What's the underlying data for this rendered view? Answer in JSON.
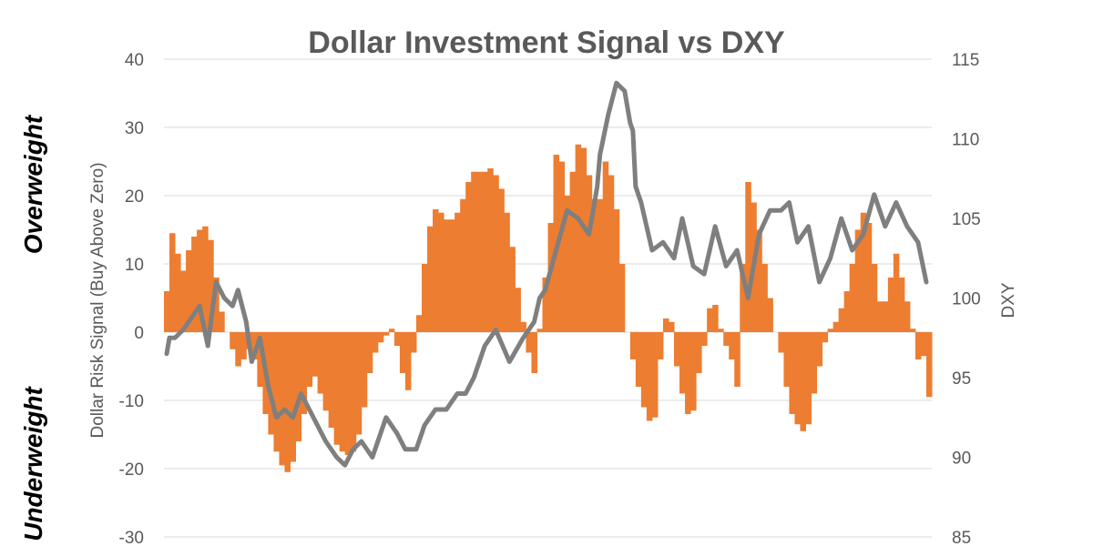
{
  "chart_data": {
    "type": "bar+line",
    "title": "Dollar Investment Signal vs DXY",
    "ylabel_left": "Dollar Risk Signal  (Buy Above Zero)",
    "ylabel_right": "DXY",
    "side_label_top": "Overweight",
    "side_label_bottom": "Underweight",
    "ylim_left": [
      -30,
      40
    ],
    "ylim_right": [
      85,
      115
    ],
    "yticks_left": [
      "40",
      "30",
      "20",
      "10",
      "0",
      "-10",
      "-20",
      "-30"
    ],
    "yticks_right": [
      "115",
      "110",
      "105",
      "100",
      "95",
      "90",
      "85"
    ],
    "grid": true,
    "colors": {
      "bar": "#ED7D31",
      "line": "#7F7F7F",
      "text": "#595959",
      "grid": "#D9D9D9"
    },
    "series": [
      {
        "name": "Dollar Risk Signal",
        "axis": "left",
        "style": "bar",
        "values": [
          6,
          14.5,
          11.5,
          9,
          12,
          14,
          15,
          15.5,
          13.5,
          8,
          3,
          0,
          -2.5,
          -5,
          -4,
          -2.5,
          -4,
          -8,
          -12,
          -15,
          -17.5,
          -19.5,
          -20.5,
          -19,
          -16,
          -12,
          -8,
          -6.5,
          -9,
          -11.5,
          -14,
          -16.5,
          -17.5,
          -18,
          -17.5,
          -15,
          -11,
          -6,
          -3,
          -1.5,
          -0.5,
          0.5,
          -2,
          -6,
          -8.5,
          -3,
          2.5,
          10,
          15.5,
          18,
          17.5,
          16.5,
          16.5,
          17.5,
          19.5,
          22,
          23.5,
          23.5,
          23.5,
          24,
          23,
          21,
          17.5,
          12.5,
          6.5,
          1.5,
          -3,
          -6,
          0.5,
          8,
          16,
          26,
          25,
          20,
          23.5,
          27.5,
          27,
          23,
          19.5,
          19.5,
          25,
          23,
          18,
          10,
          0,
          -4,
          -8,
          -11,
          -13,
          -12.5,
          -4,
          2,
          1.5,
          -5,
          -9,
          -12,
          -11.5,
          -6,
          -2,
          3.5,
          4,
          0.5,
          -2,
          -4,
          -8,
          10,
          22,
          19,
          15,
          10,
          5,
          0,
          -3,
          -8,
          -12,
          -13.5,
          -14.5,
          -13.5,
          -9,
          -5,
          -1.5,
          0.5,
          1.5,
          3.5,
          6,
          10,
          15,
          17.5,
          16,
          10,
          4.5,
          4.5,
          8,
          11.5,
          8,
          4.5,
          0.5,
          -4,
          -3.5,
          -9.5
        ]
      },
      {
        "name": "DXY",
        "axis": "right",
        "style": "line",
        "x": [
          0,
          0.5,
          1.5,
          3,
          6,
          7.5,
          9,
          10.5,
          12,
          13,
          14.5,
          15.5,
          17,
          18.5,
          20,
          21.5,
          23,
          24.5,
          26,
          27.5,
          29,
          31,
          32.5,
          34,
          35.5,
          37.5,
          40,
          42,
          43.5,
          45.5,
          47,
          49,
          51,
          53,
          54.5,
          56,
          58,
          60,
          62.5,
          65,
          67,
          68,
          69,
          71,
          73,
          75,
          77,
          78.5,
          79,
          80.5,
          82,
          83.5,
          84.5,
          85,
          85.5,
          86.5,
          87.5,
          88.5,
          90.5,
          92.5,
          94,
          96,
          98,
          100,
          102,
          104,
          106,
          108,
          110,
          112,
          113.5,
          115,
          117,
          119,
          121,
          123,
          125,
          127,
          129,
          131,
          133,
          135,
          137,
          138.5
        ],
        "values": [
          96.5,
          97.5,
          97.5,
          98,
          99.5,
          97,
          101,
          100,
          99.5,
          100.5,
          98.5,
          96,
          97.5,
          94.5,
          92.5,
          93,
          92.5,
          94,
          93,
          92,
          91,
          90,
          89.5,
          90.5,
          91,
          90,
          92.5,
          91.5,
          90.5,
          90.5,
          92,
          93,
          93,
          94,
          94,
          95,
          97,
          98,
          96,
          97.5,
          98.5,
          100,
          100.5,
          103,
          105.5,
          105,
          104,
          107,
          109,
          111.5,
          113.5,
          113,
          111,
          110.5,
          107,
          106,
          104.5,
          103,
          103.5,
          102.5,
          105,
          102,
          101.5,
          104.5,
          102,
          103,
          100,
          104,
          105.5,
          105.5,
          106,
          103.5,
          104.5,
          101,
          102.5,
          105,
          103,
          104,
          106.5,
          104.5,
          106,
          104.5,
          103.5,
          101
        ]
      }
    ]
  }
}
